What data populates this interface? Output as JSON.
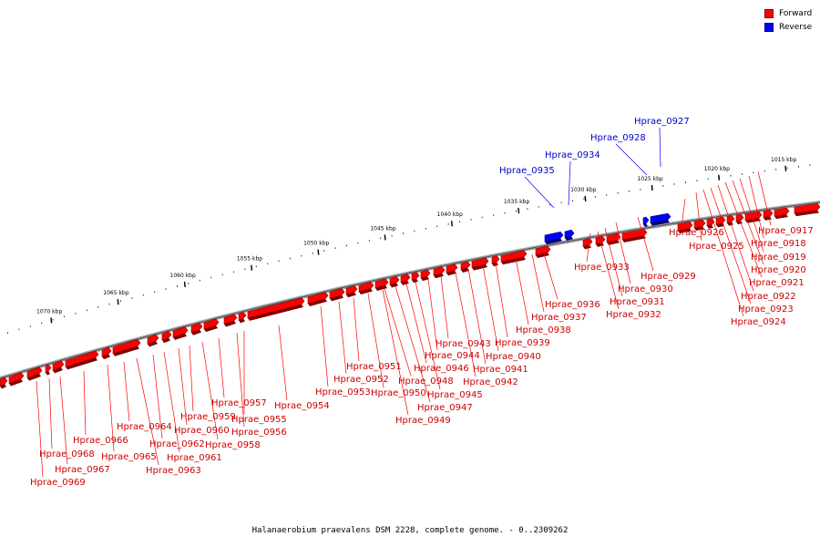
{
  "caption": "Halanaerobium praevalens DSM 2228, complete genome. - 0..2309262",
  "colors": {
    "forward": "#ff0000",
    "reverse": "#0000ff",
    "forward_label": "#cc0000",
    "reverse_label": "#0000cc"
  },
  "legend": [
    {
      "label": "Forward",
      "color": "#ff0000"
    },
    {
      "label": "Reverse",
      "color": "#0000ff"
    }
  ],
  "ruler_ticks": [
    {
      "label": "1015 kbp",
      "kbp": 1015
    },
    {
      "label": "1020 kbp",
      "kbp": 1020
    },
    {
      "label": "1025 kbp",
      "kbp": 1025
    },
    {
      "label": "1030 kbp",
      "kbp": 1030
    },
    {
      "label": "1035 kbp",
      "kbp": 1035
    },
    {
      "label": "1040 kbp",
      "kbp": 1040
    },
    {
      "label": "1045 kbp",
      "kbp": 1045
    },
    {
      "label": "1050 kbp",
      "kbp": 1050
    },
    {
      "label": "1055 kbp",
      "kbp": 1055
    },
    {
      "label": "1060 kbp",
      "kbp": 1060
    },
    {
      "label": "1065 kbp",
      "kbp": 1065
    },
    {
      "label": "1070 kbp",
      "kbp": 1070
    }
  ],
  "genes": [
    {
      "name": "Hprae_0917",
      "strand": "forward"
    },
    {
      "name": "Hprae_0918",
      "strand": "forward"
    },
    {
      "name": "Hprae_0919",
      "strand": "forward"
    },
    {
      "name": "Hprae_0920",
      "strand": "forward"
    },
    {
      "name": "Hprae_0921",
      "strand": "forward"
    },
    {
      "name": "Hprae_0922",
      "strand": "forward"
    },
    {
      "name": "Hprae_0923",
      "strand": "forward"
    },
    {
      "name": "Hprae_0924",
      "strand": "forward"
    },
    {
      "name": "Hprae_0925",
      "strand": "forward"
    },
    {
      "name": "Hprae_0926",
      "strand": "forward"
    },
    {
      "name": "Hprae_0927",
      "strand": "reverse"
    },
    {
      "name": "Hprae_0928",
      "strand": "reverse"
    },
    {
      "name": "Hprae_0929",
      "strand": "forward"
    },
    {
      "name": "Hprae_0930",
      "strand": "forward"
    },
    {
      "name": "Hprae_0931",
      "strand": "forward"
    },
    {
      "name": "Hprae_0932",
      "strand": "forward"
    },
    {
      "name": "Hprae_0933",
      "strand": "forward"
    },
    {
      "name": "Hprae_0934",
      "strand": "reverse"
    },
    {
      "name": "Hprae_0935",
      "strand": "reverse"
    },
    {
      "name": "Hprae_0936",
      "strand": "forward"
    },
    {
      "name": "Hprae_0937",
      "strand": "forward"
    },
    {
      "name": "Hprae_0938",
      "strand": "forward"
    },
    {
      "name": "Hprae_0939",
      "strand": "forward"
    },
    {
      "name": "Hprae_0940",
      "strand": "forward"
    },
    {
      "name": "Hprae_0941",
      "strand": "forward"
    },
    {
      "name": "Hprae_0942",
      "strand": "forward"
    },
    {
      "name": "Hprae_0943",
      "strand": "forward"
    },
    {
      "name": "Hprae_0944",
      "strand": "forward"
    },
    {
      "name": "Hprae_0945",
      "strand": "forward"
    },
    {
      "name": "Hprae_0946",
      "strand": "forward"
    },
    {
      "name": "Hprae_0947",
      "strand": "forward"
    },
    {
      "name": "Hprae_0948",
      "strand": "forward"
    },
    {
      "name": "Hprae_0949",
      "strand": "forward"
    },
    {
      "name": "Hprae_0950",
      "strand": "forward"
    },
    {
      "name": "Hprae_0951",
      "strand": "forward"
    },
    {
      "name": "Hprae_0952",
      "strand": "forward"
    },
    {
      "name": "Hprae_0953",
      "strand": "forward"
    },
    {
      "name": "Hprae_0954",
      "strand": "forward"
    },
    {
      "name": "Hprae_0955",
      "strand": "forward"
    },
    {
      "name": "Hprae_0956",
      "strand": "forward"
    },
    {
      "name": "Hprae_0957",
      "strand": "forward"
    },
    {
      "name": "Hprae_0958",
      "strand": "forward"
    },
    {
      "name": "Hprae_0959",
      "strand": "forward"
    },
    {
      "name": "Hprae_0960",
      "strand": "forward"
    },
    {
      "name": "Hprae_0961",
      "strand": "forward"
    },
    {
      "name": "Hprae_0962",
      "strand": "forward"
    },
    {
      "name": "Hprae_0963",
      "strand": "forward"
    },
    {
      "name": "Hprae_0964",
      "strand": "forward"
    },
    {
      "name": "Hprae_0965",
      "strand": "forward"
    },
    {
      "name": "Hprae_0966",
      "strand": "forward"
    },
    {
      "name": "Hprae_0967",
      "strand": "forward"
    },
    {
      "name": "Hprae_0968",
      "strand": "forward"
    },
    {
      "name": "Hprae_0969",
      "strand": "forward"
    }
  ]
}
